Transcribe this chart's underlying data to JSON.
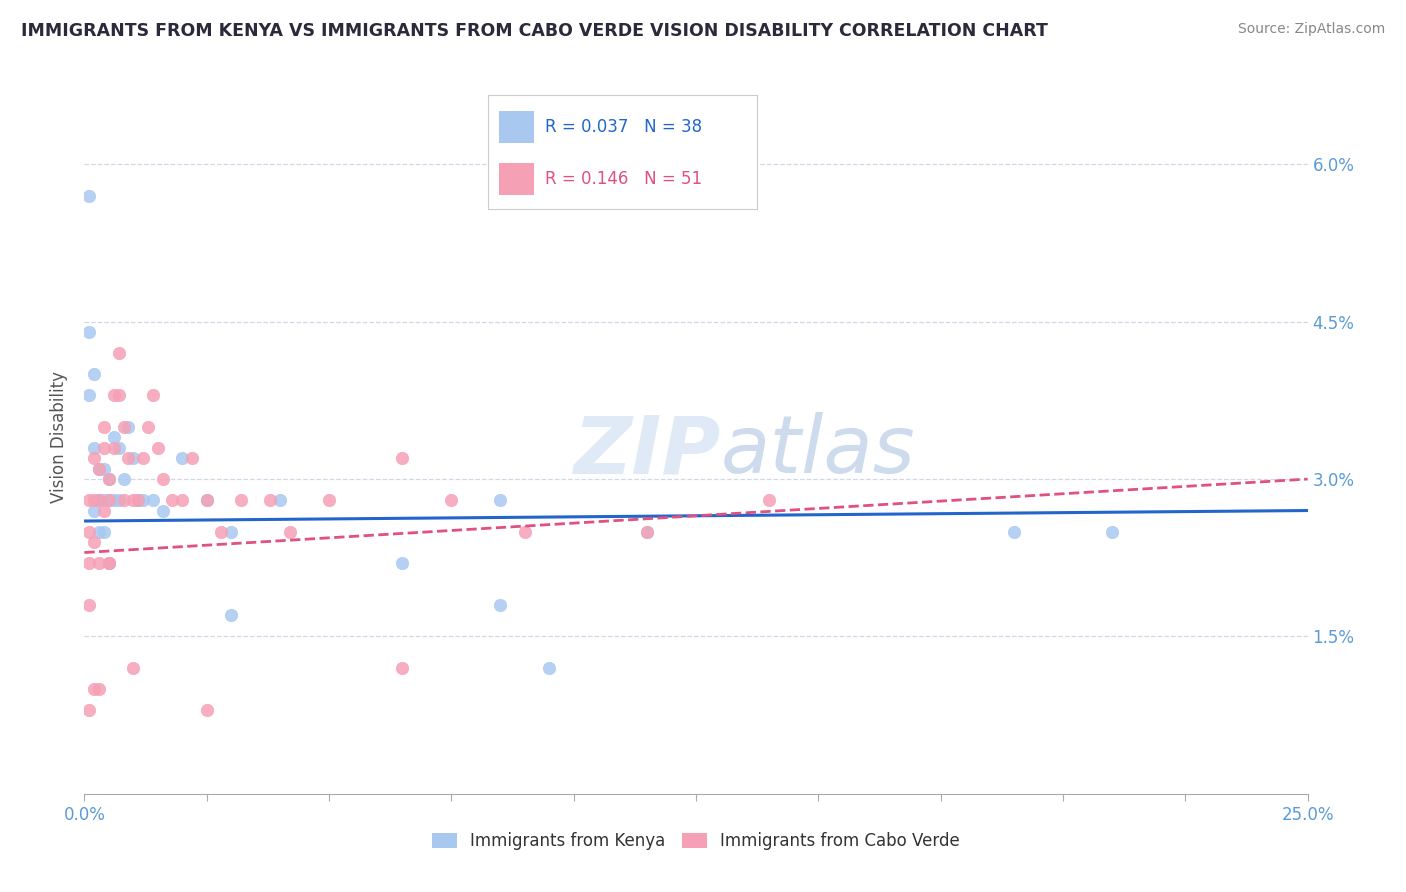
{
  "title": "IMMIGRANTS FROM KENYA VS IMMIGRANTS FROM CABO VERDE VISION DISABILITY CORRELATION CHART",
  "source": "Source: ZipAtlas.com",
  "ylabel": "Vision Disability",
  "xlim": [
    0.0,
    0.25
  ],
  "ylim": [
    0.0,
    0.068
  ],
  "yticks": [
    0.015,
    0.03,
    0.045,
    0.06
  ],
  "yticklabels": [
    "1.5%",
    "3.0%",
    "4.5%",
    "6.0%"
  ],
  "kenya_color": "#a8c8f0",
  "cabo_color": "#f5a0b5",
  "kenya_line_color": "#2266cc",
  "cabo_line_color": "#e05080",
  "kenya_R": 0.037,
  "kenya_N": 38,
  "cabo_R": 0.146,
  "cabo_N": 51,
  "watermark": "ZIPatlas",
  "background_color": "#ffffff",
  "grid_color": "#d0d8e8",
  "kenya_x": [
    0.001,
    0.001,
    0.001,
    0.002,
    0.002,
    0.002,
    0.003,
    0.003,
    0.003,
    0.004,
    0.004,
    0.004,
    0.005,
    0.005,
    0.005,
    0.006,
    0.006,
    0.007,
    0.007,
    0.008,
    0.009,
    0.01,
    0.011,
    0.012,
    0.014,
    0.016,
    0.02,
    0.025,
    0.03,
    0.04,
    0.065,
    0.085,
    0.095,
    0.115,
    0.19,
    0.21,
    0.085,
    0.03
  ],
  "kenya_y": [
    0.057,
    0.044,
    0.038,
    0.04,
    0.033,
    0.027,
    0.031,
    0.028,
    0.025,
    0.031,
    0.028,
    0.025,
    0.03,
    0.028,
    0.022,
    0.034,
    0.028,
    0.033,
    0.028,
    0.03,
    0.035,
    0.032,
    0.028,
    0.028,
    0.028,
    0.027,
    0.032,
    0.028,
    0.025,
    0.028,
    0.022,
    0.028,
    0.012,
    0.025,
    0.025,
    0.025,
    0.018,
    0.017
  ],
  "cabo_x": [
    0.001,
    0.001,
    0.001,
    0.001,
    0.001,
    0.002,
    0.002,
    0.002,
    0.003,
    0.003,
    0.003,
    0.004,
    0.004,
    0.004,
    0.005,
    0.005,
    0.005,
    0.006,
    0.006,
    0.007,
    0.007,
    0.008,
    0.008,
    0.009,
    0.01,
    0.011,
    0.012,
    0.013,
    0.014,
    0.015,
    0.016,
    0.018,
    0.02,
    0.022,
    0.025,
    0.028,
    0.032,
    0.038,
    0.042,
    0.05,
    0.065,
    0.075,
    0.09,
    0.115,
    0.14,
    0.065,
    0.025,
    0.01,
    0.005,
    0.003,
    0.002
  ],
  "cabo_y": [
    0.028,
    0.025,
    0.022,
    0.018,
    0.008,
    0.032,
    0.028,
    0.024,
    0.031,
    0.028,
    0.022,
    0.035,
    0.033,
    0.027,
    0.03,
    0.028,
    0.022,
    0.038,
    0.033,
    0.042,
    0.038,
    0.035,
    0.028,
    0.032,
    0.028,
    0.028,
    0.032,
    0.035,
    0.038,
    0.033,
    0.03,
    0.028,
    0.028,
    0.032,
    0.028,
    0.025,
    0.028,
    0.028,
    0.025,
    0.028,
    0.032,
    0.028,
    0.025,
    0.025,
    0.028,
    0.012,
    0.008,
    0.012,
    0.022,
    0.01,
    0.01
  ]
}
